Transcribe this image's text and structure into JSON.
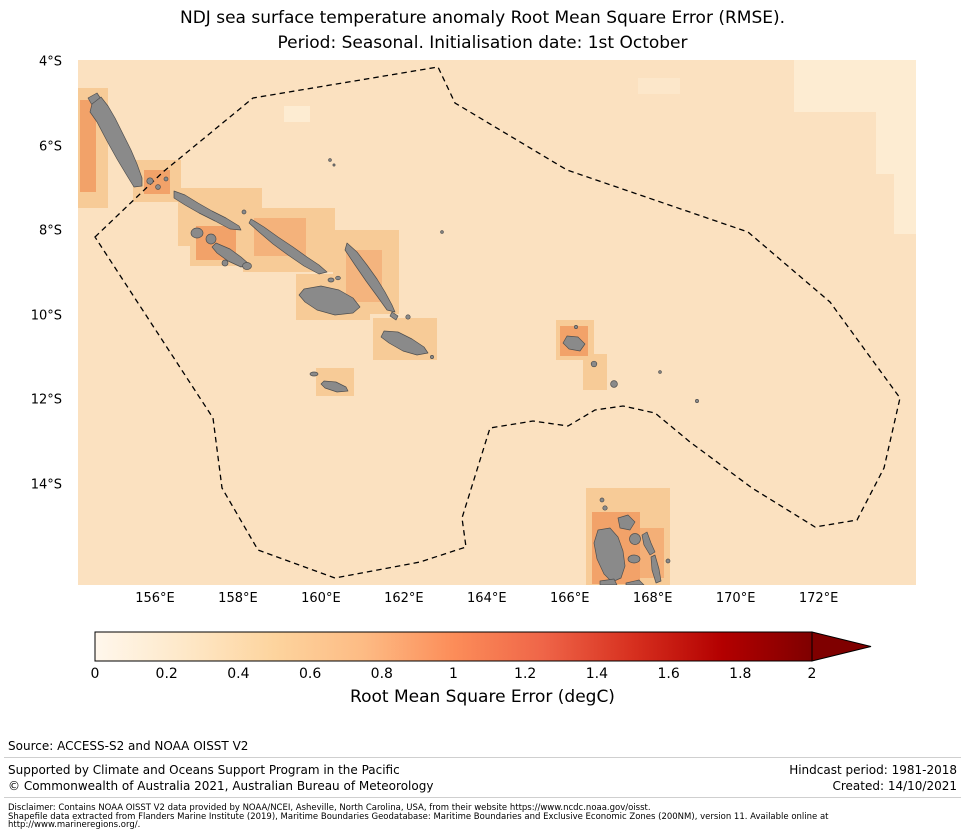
{
  "title": {
    "line1": "NDJ sea surface temperature anomaly Root Mean Square Error (RMSE).",
    "line2": "Period: Seasonal. Initialisation date: 1st October"
  },
  "map": {
    "y_ticks": [
      "4°S",
      "6°S",
      "8°S",
      "10°S",
      "12°S",
      "14°S"
    ],
    "x_ticks": [
      "156°E",
      "158°E",
      "160°E",
      "162°E",
      "164°E",
      "166°E",
      "168°E",
      "170°E",
      "172°E"
    ],
    "colors": {
      "ocean_low_rmse": "#fdecd2",
      "ocean_base_rmse": "#fbe1c0",
      "coastal_high_rmse": "#f2a269",
      "land": "#8a8a8a",
      "eez_boundary": "#000000"
    }
  },
  "colorbar": {
    "label": "Root Mean Square Error (degC)",
    "ticks": [
      "0",
      "0.2",
      "0.4",
      "0.6",
      "0.8",
      "1",
      "1.2",
      "1.4",
      "1.6",
      "1.8",
      "2"
    ],
    "colormap_stops": [
      "#fff7ec",
      "#fee8c8",
      "#fdd49e",
      "#fdbb84",
      "#fc8d59",
      "#ef6548",
      "#d7301f",
      "#b30000",
      "#7f0000"
    ]
  },
  "footer": {
    "source": "Source: ACCESS-S2 and NOAA OISST V2",
    "supported_by": "Supported by Climate and Oceans Support Program in the Pacific",
    "copyright": "© Commonwealth of Australia 2021, Australian Bureau of Meteorology",
    "hindcast_period": "Hindcast period: 1981-2018",
    "created": "Created: 14/10/2021",
    "disclaimer_line1": "Disclaimer: Contains NOAA OISST V2 data provided by NOAA/NCEI, Asheville, North Carolina, USA, from their website https://www.ncdc.noaa.gov/oisst.",
    "disclaimer_line2": "Shapefile data extracted from Flanders Marine Institute (2019), Maritime Boundaries Geodatabase: Maritime Boundaries and Exclusive Economic Zones (200NM), version 11. Available online at",
    "disclaimer_line3": "http://www.marineregions.org/."
  },
  "chart_data": {
    "type": "heatmap",
    "title": "NDJ sea surface temperature anomaly Root Mean Square Error (RMSE). Period: Seasonal. Initialisation date: 1st October",
    "x_axis": {
      "ticks_deg_east": [
        156,
        158,
        160,
        162,
        164,
        166,
        168,
        170,
        172
      ],
      "range_deg_east": [
        154.1,
        174.3
      ]
    },
    "y_axis": {
      "ticks_deg_south": [
        4,
        6,
        8,
        10,
        12,
        14
      ],
      "range_deg_south": [
        4,
        16.4
      ]
    },
    "colorbar": {
      "label": "Root Mean Square Error (degC)",
      "range": [
        0,
        2
      ],
      "tick_step": 0.2,
      "extend": "max",
      "colormap": "OrRd"
    },
    "field_estimate": {
      "open_ocean_rmse_degC": [
        0.3,
        0.4
      ],
      "northeast_corner_rmse_degC": [
        0.2,
        0.3
      ],
      "coastal_island_rmse_degC": [
        0.5,
        0.8
      ]
    },
    "overlays": [
      "Solomon Islands EEZ boundary (black dashed polygon)",
      "Land (grey): Bougainville, Choiseul, New Georgia group, Santa Isabel, Malaita, Guadalcanal, Makira, Rennell, Santa Cruz Islands, northern Vanuatu"
    ],
    "grid": false,
    "legend_position": "bottom-colorbar"
  }
}
